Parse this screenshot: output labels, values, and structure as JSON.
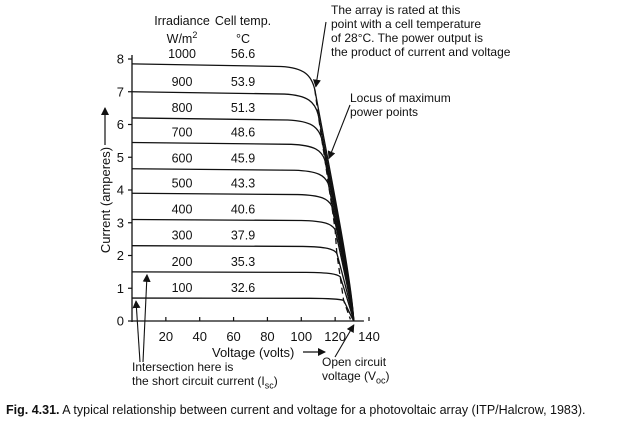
{
  "chart_data": {
    "type": "line",
    "xlabel": "Voltage (volts)",
    "ylabel": "Current (amperes)",
    "xlim": [
      0,
      140
    ],
    "ylim": [
      0,
      8
    ],
    "x_ticks": [
      "20",
      "40",
      "60",
      "80",
      "100",
      "120",
      "140"
    ],
    "y_ticks": [
      "0",
      "1",
      "2",
      "3",
      "4",
      "5",
      "6",
      "7",
      "8"
    ],
    "grid": false,
    "table_header": {
      "irradiance": "Irradiance",
      "irradiance_unit": "W/m",
      "irradiance_unit_sup": "2",
      "cell_temp": "Cell temp.",
      "cell_temp_unit": "°C"
    },
    "series": [
      {
        "irradiance": "1000",
        "cell_temp": "56.6",
        "isc": 7.85,
        "mpp_v": 108,
        "voc": 131
      },
      {
        "irradiance": "900",
        "cell_temp": "53.9",
        "isc": 7.0,
        "mpp_v": 110,
        "voc": 131
      },
      {
        "irradiance": "800",
        "cell_temp": "51.3",
        "isc": 6.2,
        "mpp_v": 112,
        "voc": 131
      },
      {
        "irradiance": "700",
        "cell_temp": "48.6",
        "isc": 5.45,
        "mpp_v": 114,
        "voc": 131
      },
      {
        "irradiance": "600",
        "cell_temp": "45.9",
        "isc": 4.65,
        "mpp_v": 116,
        "voc": 131
      },
      {
        "irradiance": "500",
        "cell_temp": "43.3",
        "isc": 3.9,
        "mpp_v": 118,
        "voc": 131
      },
      {
        "irradiance": "400",
        "cell_temp": "40.6",
        "isc": 3.1,
        "mpp_v": 120,
        "voc": 131
      },
      {
        "irradiance": "300",
        "cell_temp": "37.9",
        "isc": 2.3,
        "mpp_v": 121,
        "voc": 131
      },
      {
        "irradiance": "200",
        "cell_temp": "35.3",
        "isc": 1.5,
        "mpp_v": 123,
        "voc": 131
      },
      {
        "irradiance": "100",
        "cell_temp": "32.6",
        "isc": 0.7,
        "mpp_v": 125,
        "voc": 131
      }
    ],
    "annotations": {
      "rated": [
        "The array is rated at this",
        "point with a cell temperature",
        "of 28°C. The power output is",
        "the product of current and voltage"
      ],
      "locus": [
        "Locus of maximum",
        "power points"
      ],
      "intersection": [
        "Intersection here is",
        "the short circuit current (I",
        "sc",
        ")"
      ],
      "open_circuit": [
        "Open circuit",
        "voltage (V",
        "oc",
        ")"
      ]
    }
  },
  "caption": {
    "fig": "Fig. 4.31.",
    "text": " A typical relationship between current and voltage for  a photovoltaic array (ITP/Halcrow, 1983)."
  }
}
